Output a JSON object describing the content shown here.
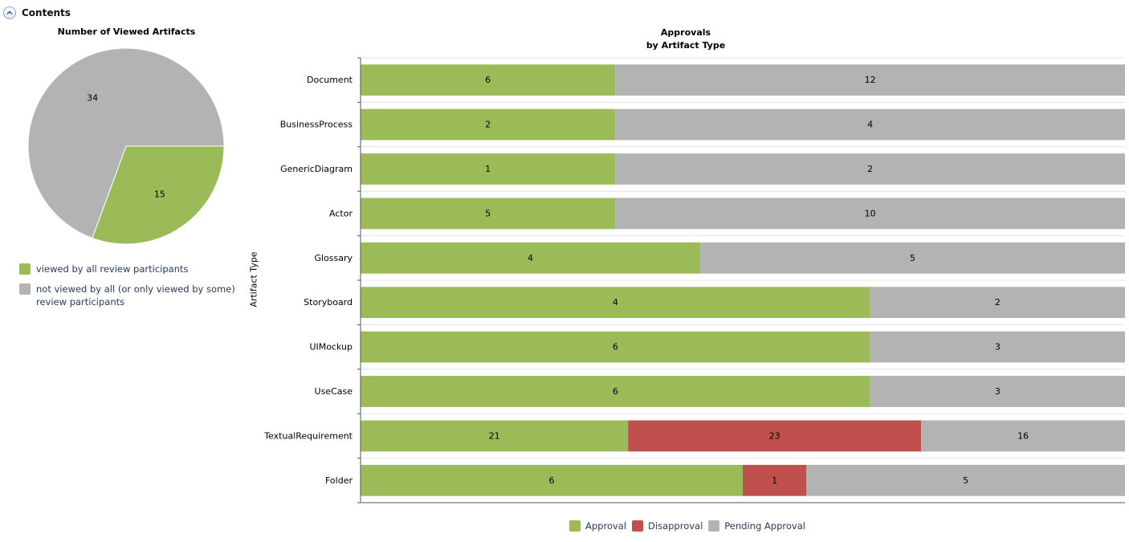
{
  "section": {
    "title": "Contents",
    "toggle_icon": "chevron-up-icon"
  },
  "colors": {
    "approval": "#9bbb59",
    "disapproval": "#c0504d",
    "pending": "#b3b3b3"
  },
  "pie": {
    "title": "Number of Viewed Artifacts",
    "chart_data": {
      "type": "pie",
      "slices": [
        {
          "label": "viewed by all review participants",
          "value": 15,
          "color": "#9bbb59"
        },
        {
          "label": "not viewed by all (or only viewed by some) review participants",
          "value": 34,
          "color": "#b3b3b3"
        }
      ]
    }
  },
  "legend_pie": [
    {
      "text": "viewed by all review participants",
      "color": "#9bbb59"
    },
    {
      "text": "not viewed by all (or only viewed by some) review participants",
      "color": "#b3b3b3"
    }
  ],
  "bar": {
    "title_line1": "Approvals",
    "title_line2": "by Artifact Type",
    "ylabel": "Artifact Type",
    "legend": [
      {
        "text": "Approval",
        "color": "#9bbb59"
      },
      {
        "text": "Disapproval",
        "color": "#c0504d"
      },
      {
        "text": "Pending Approval",
        "color": "#b3b3b3"
      }
    ]
  },
  "chart_data": {
    "type": "bar",
    "orientation": "horizontal",
    "stacked": "percent",
    "categories": [
      "Document",
      "BusinessProcess",
      "GenericDiagram",
      "Actor",
      "Glossary",
      "Storyboard",
      "UIMockup",
      "UseCase",
      "TextualRequirement",
      "Folder"
    ],
    "series": [
      {
        "name": "Approval",
        "color": "#9bbb59",
        "values": [
          6,
          2,
          1,
          5,
          4,
          4,
          6,
          6,
          21,
          6
        ]
      },
      {
        "name": "Disapproval",
        "color": "#c0504d",
        "values": [
          0,
          0,
          0,
          0,
          0,
          0,
          0,
          0,
          23,
          1
        ]
      },
      {
        "name": "Pending Approval",
        "color": "#b3b3b3",
        "values": [
          12,
          4,
          2,
          10,
          5,
          2,
          3,
          3,
          16,
          5
        ]
      }
    ],
    "ylabel": "Artifact Type",
    "legend_position": "bottom"
  }
}
